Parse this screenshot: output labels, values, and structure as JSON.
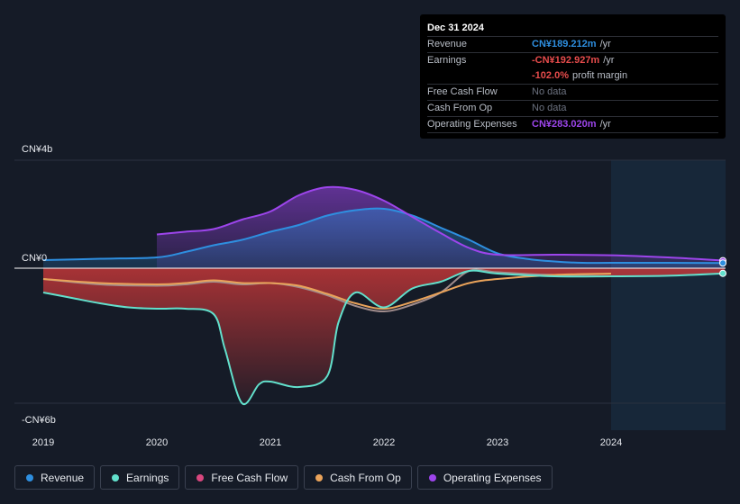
{
  "colors": {
    "revenue": "#2e8fe0",
    "earnings": "#62e0cc",
    "free_cash_flow": "#d8477e",
    "cash_from_op": "#eaa35a",
    "operating_expenses": "#9d45ec"
  },
  "tooltip": {
    "date": "Dec 31 2024",
    "rows": [
      {
        "label": "Revenue",
        "value": "CN¥189.212m",
        "unit": "/yr",
        "color": "#2e8fe0"
      },
      {
        "label": "Earnings",
        "value": "-CN¥192.927m",
        "unit": "/yr",
        "color": "#e84c4c"
      },
      {
        "label": "",
        "value": "-102.0%",
        "unit": "profit margin",
        "color": "#e84c4c"
      },
      {
        "label": "Free Cash Flow",
        "value": "No data",
        "unit": "",
        "color": ""
      },
      {
        "label": "Cash From Op",
        "value": "No data",
        "unit": "",
        "color": ""
      },
      {
        "label": "Operating Expenses",
        "value": "CN¥283.020m",
        "unit": "/yr",
        "color": "#9d45ec"
      }
    ]
  },
  "legend": [
    {
      "label": "Revenue",
      "color": "#2e8fe0"
    },
    {
      "label": "Earnings",
      "color": "#62e0cc"
    },
    {
      "label": "Free Cash Flow",
      "color": "#d8477e"
    },
    {
      "label": "Cash From Op",
      "color": "#eaa35a"
    },
    {
      "label": "Operating Expenses",
      "color": "#9d45ec"
    }
  ],
  "chart_data": {
    "type": "line",
    "title": "",
    "y_unit": "CN¥ billions",
    "ylim": [
      -6,
      4
    ],
    "y_tick_labels": [
      {
        "value": 4,
        "label": "CN¥4b"
      },
      {
        "value": 0,
        "label": "CN¥0"
      },
      {
        "value": -6,
        "label": "-CN¥6b"
      }
    ],
    "xlim": [
      2019,
      2025
    ],
    "x_ticks": [
      2019,
      2020,
      2021,
      2022,
      2023,
      2024
    ],
    "forecast_start": 2024,
    "series": [
      {
        "name": "Revenue",
        "color": "#2e8fe0",
        "points": [
          [
            2019,
            0.3
          ],
          [
            2019.5,
            0.35
          ],
          [
            2020,
            0.4
          ],
          [
            2020.25,
            0.6
          ],
          [
            2020.5,
            0.85
          ],
          [
            2020.75,
            1.05
          ],
          [
            2021,
            1.35
          ],
          [
            2021.25,
            1.6
          ],
          [
            2021.5,
            1.95
          ],
          [
            2021.75,
            2.15
          ],
          [
            2022,
            2.2
          ],
          [
            2022.25,
            1.95
          ],
          [
            2022.5,
            1.5
          ],
          [
            2022.75,
            1.05
          ],
          [
            2023,
            0.55
          ],
          [
            2023.25,
            0.35
          ],
          [
            2023.5,
            0.25
          ],
          [
            2023.75,
            0.2
          ],
          [
            2024,
            0.2
          ],
          [
            2024.5,
            0.2
          ],
          [
            2025,
            0.19
          ]
        ]
      },
      {
        "name": "Earnings",
        "color": "#62e0cc",
        "points": [
          [
            2019,
            -0.9
          ],
          [
            2019.25,
            -1.1
          ],
          [
            2019.5,
            -1.3
          ],
          [
            2019.75,
            -1.45
          ],
          [
            2020,
            -1.5
          ],
          [
            2020.25,
            -1.5
          ],
          [
            2020.5,
            -1.7
          ],
          [
            2020.6,
            -3.0
          ],
          [
            2020.75,
            -5.0
          ],
          [
            2020.9,
            -4.3
          ],
          [
            2021,
            -4.2
          ],
          [
            2021.25,
            -4.4
          ],
          [
            2021.5,
            -4.0
          ],
          [
            2021.6,
            -2.0
          ],
          [
            2021.75,
            -0.9
          ],
          [
            2022,
            -1.45
          ],
          [
            2022.25,
            -0.75
          ],
          [
            2022.5,
            -0.5
          ],
          [
            2022.75,
            -0.1
          ],
          [
            2023,
            -0.2
          ],
          [
            2023.5,
            -0.3
          ],
          [
            2024,
            -0.3
          ],
          [
            2024.5,
            -0.28
          ],
          [
            2025,
            -0.19
          ]
        ]
      },
      {
        "name": "Free Cash Flow",
        "color": "#d8477e",
        "points": [
          [
            2019,
            -0.4
          ],
          [
            2019.5,
            -0.6
          ],
          [
            2020,
            -0.65
          ],
          [
            2020.25,
            -0.6
          ],
          [
            2020.5,
            -0.5
          ],
          [
            2020.75,
            -0.6
          ],
          [
            2021,
            -0.55
          ],
          [
            2021.25,
            -0.7
          ],
          [
            2021.5,
            -1.0
          ],
          [
            2021.75,
            -1.4
          ],
          [
            2022,
            -1.6
          ],
          [
            2022.25,
            -1.35
          ],
          [
            2022.5,
            -0.9
          ],
          [
            2022.75,
            -0.1
          ],
          [
            2023,
            -0.15
          ],
          [
            2023.5,
            -0.25
          ],
          [
            2024,
            -0.2
          ]
        ]
      },
      {
        "name": "Cash From Op",
        "color": "#eaa35a",
        "points": [
          [
            2019,
            -0.4
          ],
          [
            2019.5,
            -0.55
          ],
          [
            2020,
            -0.6
          ],
          [
            2020.25,
            -0.55
          ],
          [
            2020.5,
            -0.45
          ],
          [
            2020.75,
            -0.55
          ],
          [
            2021,
            -0.55
          ],
          [
            2021.25,
            -0.65
          ],
          [
            2021.5,
            -0.95
          ],
          [
            2021.75,
            -1.3
          ],
          [
            2022,
            -1.5
          ],
          [
            2022.25,
            -1.25
          ],
          [
            2022.5,
            -0.9
          ],
          [
            2022.75,
            -0.55
          ],
          [
            2023,
            -0.4
          ],
          [
            2023.5,
            -0.25
          ],
          [
            2024,
            -0.2
          ]
        ]
      },
      {
        "name": "Operating Expenses",
        "color": "#9d45ec",
        "points": [
          [
            2020,
            1.25
          ],
          [
            2020.25,
            1.35
          ],
          [
            2020.5,
            1.45
          ],
          [
            2020.75,
            1.8
          ],
          [
            2021,
            2.1
          ],
          [
            2021.25,
            2.7
          ],
          [
            2021.5,
            3.0
          ],
          [
            2021.75,
            2.9
          ],
          [
            2022,
            2.5
          ],
          [
            2022.25,
            1.9
          ],
          [
            2022.5,
            1.3
          ],
          [
            2022.75,
            0.75
          ],
          [
            2023,
            0.5
          ],
          [
            2023.5,
            0.5
          ],
          [
            2024,
            0.48
          ],
          [
            2024.5,
            0.4
          ],
          [
            2025,
            0.28
          ]
        ]
      }
    ]
  }
}
